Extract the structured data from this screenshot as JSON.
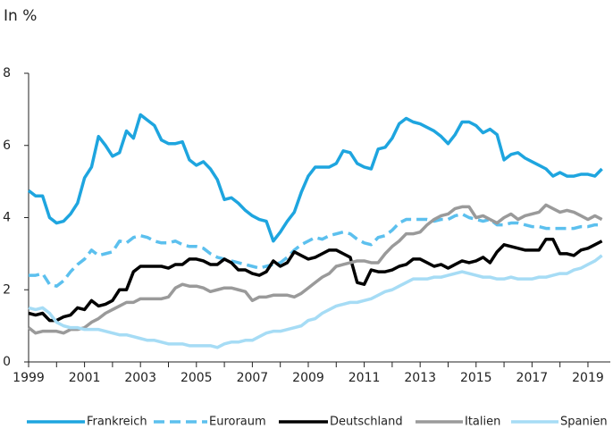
{
  "chart_data": {
    "type": "line",
    "ylabel": "In %",
    "xlim": [
      1999,
      2019.8
    ],
    "xticks": [
      1999,
      2001,
      2003,
      2005,
      2007,
      2009,
      2011,
      2013,
      2015,
      2017,
      2019
    ],
    "xminorticks": [
      2000,
      2002,
      2004,
      2006,
      2008,
      2010,
      2012,
      2014,
      2016,
      2018
    ],
    "ylim": [
      0,
      8
    ],
    "yticks": [
      0,
      2,
      4,
      6,
      8
    ],
    "grid": false,
    "legend": "bottom",
    "x": [
      1999,
      1999.25,
      1999.5,
      1999.75,
      2000,
      2000.25,
      2000.5,
      2000.75,
      2001,
      2001.25,
      2001.5,
      2001.75,
      2002,
      2002.25,
      2002.5,
      2002.75,
      2003,
      2003.25,
      2003.5,
      2003.75,
      2004,
      2004.25,
      2004.5,
      2004.75,
      2005,
      2005.25,
      2005.5,
      2005.75,
      2006,
      2006.25,
      2006.5,
      2006.75,
      2007,
      2007.25,
      2007.5,
      2007.75,
      2008,
      2008.25,
      2008.5,
      2008.75,
      2009,
      2009.25,
      2009.5,
      2009.75,
      2010,
      2010.25,
      2010.5,
      2010.75,
      2011,
      2011.25,
      2011.5,
      2011.75,
      2012,
      2012.25,
      2012.5,
      2012.75,
      2013,
      2013.25,
      2013.5,
      2013.75,
      2014,
      2014.25,
      2014.5,
      2014.75,
      2015,
      2015.25,
      2015.5,
      2015.75,
      2016,
      2016.25,
      2016.5,
      2016.75,
      2017,
      2017.25,
      2017.5,
      2017.75,
      2018,
      2018.25,
      2018.5,
      2018.75,
      2019,
      2019.25,
      2019.5
    ],
    "series": [
      {
        "name": "Frankreich",
        "color": "#1ea5df",
        "dashed": false,
        "width": 3.5,
        "values": [
          4.75,
          4.6,
          4.6,
          4.0,
          3.85,
          3.9,
          4.1,
          4.4,
          5.1,
          5.4,
          6.25,
          6.0,
          5.7,
          5.8,
          6.4,
          6.2,
          6.85,
          6.7,
          6.55,
          6.15,
          6.05,
          6.05,
          6.1,
          5.6,
          5.45,
          5.55,
          5.35,
          5.05,
          4.5,
          4.55,
          4.4,
          4.2,
          4.05,
          3.95,
          3.9,
          3.35,
          3.6,
          3.9,
          4.15,
          4.7,
          5.15,
          5.4,
          5.4,
          5.4,
          5.5,
          5.85,
          5.8,
          5.5,
          5.4,
          5.35,
          5.9,
          5.95,
          6.2,
          6.6,
          6.75,
          6.65,
          6.6,
          6.5,
          6.4,
          6.25,
          6.05,
          6.3,
          6.65,
          6.65,
          6.55,
          6.35,
          6.45,
          6.3,
          5.6,
          5.75,
          5.8,
          5.65,
          5.55,
          5.45,
          5.35,
          5.15,
          5.25,
          5.15,
          5.15,
          5.2,
          5.2,
          5.15,
          5.35
        ]
      },
      {
        "name": "Euroraum",
        "color": "#5cc0ee",
        "dashed": true,
        "width": 3.5,
        "values": [
          2.4,
          2.4,
          2.45,
          2.15,
          2.1,
          2.25,
          2.5,
          2.7,
          2.85,
          3.1,
          2.95,
          3.0,
          3.05,
          3.35,
          3.3,
          3.45,
          3.5,
          3.45,
          3.35,
          3.3,
          3.3,
          3.35,
          3.25,
          3.2,
          3.2,
          3.15,
          3.0,
          2.9,
          2.85,
          2.8,
          2.75,
          2.7,
          2.65,
          2.6,
          2.65,
          2.7,
          2.75,
          2.9,
          3.1,
          3.25,
          3.35,
          3.45,
          3.4,
          3.5,
          3.55,
          3.6,
          3.55,
          3.4,
          3.3,
          3.25,
          3.45,
          3.5,
          3.65,
          3.85,
          3.95,
          3.95,
          3.95,
          3.95,
          3.9,
          3.95,
          3.95,
          4.05,
          4.1,
          4.0,
          3.95,
          3.9,
          3.95,
          3.8,
          3.8,
          3.85,
          3.85,
          3.8,
          3.75,
          3.75,
          3.7,
          3.7,
          3.7,
          3.7,
          3.7,
          3.75,
          3.75,
          3.8,
          3.8
        ]
      },
      {
        "name": "Deutschland",
        "color": "#000000",
        "dashed": false,
        "width": 3.5,
        "values": [
          1.35,
          1.3,
          1.35,
          1.15,
          1.15,
          1.25,
          1.3,
          1.5,
          1.45,
          1.7,
          1.55,
          1.6,
          1.7,
          2.0,
          2.0,
          2.5,
          2.65,
          2.65,
          2.65,
          2.65,
          2.6,
          2.7,
          2.7,
          2.85,
          2.85,
          2.8,
          2.7,
          2.7,
          2.85,
          2.75,
          2.55,
          2.55,
          2.45,
          2.4,
          2.5,
          2.8,
          2.65,
          2.75,
          3.05,
          2.95,
          2.85,
          2.9,
          3.0,
          3.1,
          3.1,
          3.0,
          2.9,
          2.2,
          2.15,
          2.55,
          2.5,
          2.5,
          2.55,
          2.65,
          2.7,
          2.85,
          2.85,
          2.75,
          2.65,
          2.7,
          2.6,
          2.7,
          2.8,
          2.75,
          2.8,
          2.9,
          2.75,
          3.05,
          3.25,
          3.2,
          3.15,
          3.1,
          3.1,
          3.1,
          3.4,
          3.4,
          3.0,
          3.0,
          2.95,
          3.1,
          3.15,
          3.25,
          3.35
        ]
      },
      {
        "name": "Italien",
        "color": "#9a9a9a",
        "dashed": false,
        "width": 3.5,
        "values": [
          0.95,
          0.8,
          0.85,
          0.85,
          0.85,
          0.8,
          0.9,
          0.9,
          0.95,
          1.1,
          1.2,
          1.35,
          1.45,
          1.55,
          1.65,
          1.65,
          1.75,
          1.75,
          1.75,
          1.75,
          1.8,
          2.05,
          2.15,
          2.1,
          2.1,
          2.05,
          1.95,
          2.0,
          2.05,
          2.05,
          2.0,
          1.95,
          1.7,
          1.8,
          1.8,
          1.85,
          1.85,
          1.85,
          1.8,
          1.9,
          2.05,
          2.2,
          2.35,
          2.45,
          2.65,
          2.7,
          2.75,
          2.8,
          2.8,
          2.75,
          2.75,
          3.0,
          3.2,
          3.35,
          3.55,
          3.55,
          3.6,
          3.8,
          3.95,
          4.05,
          4.1,
          4.25,
          4.3,
          4.3,
          4.0,
          4.05,
          3.95,
          3.85,
          4.0,
          4.1,
          3.95,
          4.05,
          4.1,
          4.15,
          4.35,
          4.25,
          4.15,
          4.2,
          4.15,
          4.05,
          3.95,
          4.05,
          3.95
        ]
      },
      {
        "name": "Spanien",
        "color": "#a6dcf5",
        "dashed": false,
        "width": 3.5,
        "values": [
          1.5,
          1.45,
          1.5,
          1.35,
          1.1,
          1.0,
          0.95,
          0.95,
          0.9,
          0.9,
          0.9,
          0.85,
          0.8,
          0.75,
          0.75,
          0.7,
          0.65,
          0.6,
          0.6,
          0.55,
          0.5,
          0.5,
          0.5,
          0.45,
          0.45,
          0.45,
          0.45,
          0.4,
          0.5,
          0.55,
          0.55,
          0.6,
          0.6,
          0.7,
          0.8,
          0.85,
          0.85,
          0.9,
          0.95,
          1.0,
          1.15,
          1.2,
          1.35,
          1.45,
          1.55,
          1.6,
          1.65,
          1.65,
          1.7,
          1.75,
          1.85,
          1.95,
          2.0,
          2.1,
          2.2,
          2.3,
          2.3,
          2.3,
          2.35,
          2.35,
          2.4,
          2.45,
          2.5,
          2.45,
          2.4,
          2.35,
          2.35,
          2.3,
          2.3,
          2.35,
          2.3,
          2.3,
          2.3,
          2.35,
          2.35,
          2.4,
          2.45,
          2.45,
          2.55,
          2.6,
          2.7,
          2.8,
          2.95
        ]
      }
    ]
  }
}
